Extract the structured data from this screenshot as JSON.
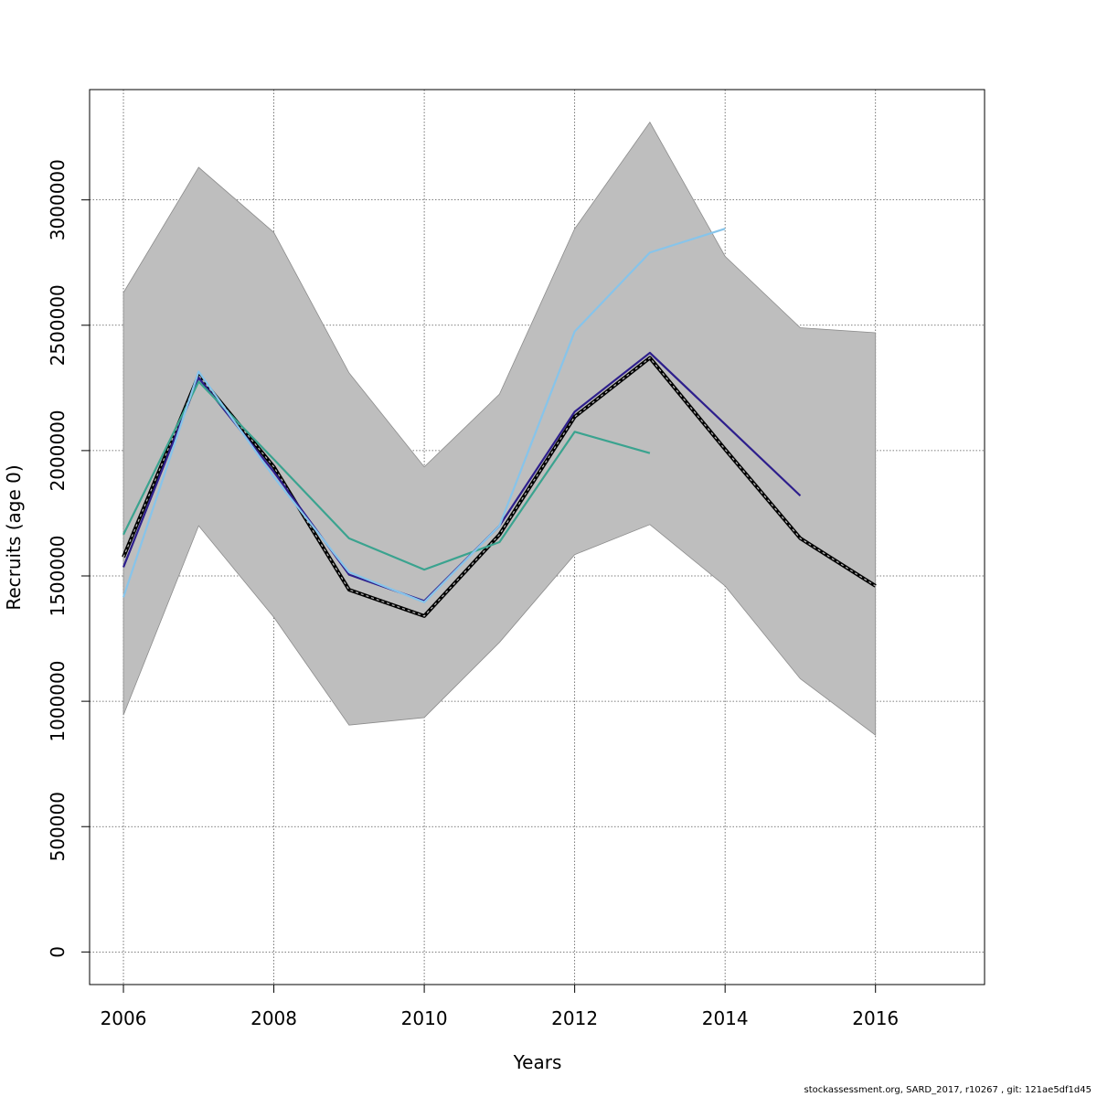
{
  "chart_data": {
    "type": "line",
    "title": "",
    "xlabel": "Years",
    "ylabel": "Recruits (age 0)",
    "xlim": [
      2005.55,
      2017.45
    ],
    "ylim": [
      -130000,
      3440000
    ],
    "x_ticks": [
      2006,
      2008,
      2010,
      2012,
      2014,
      2016
    ],
    "y_ticks": [
      0,
      500000,
      1000000,
      1500000,
      2000000,
      2500000,
      3000000
    ],
    "grid": true,
    "confidence_band": {
      "x": [
        2006,
        2007,
        2008,
        2009,
        2010,
        2011,
        2012,
        2013,
        2014,
        2015,
        2016
      ],
      "upper": [
        2630000,
        3130000,
        2870000,
        2310000,
        1935000,
        2225000,
        2885000,
        3310000,
        2775000,
        2490000,
        2470000
      ],
      "lower": [
        945000,
        1700000,
        1335000,
        905000,
        935000,
        1235000,
        1585000,
        1705000,
        1460000,
        1090000,
        865000
      ],
      "color": "#bebebe"
    },
    "series": [
      {
        "x": [
          2006,
          2007,
          2008,
          2009,
          2010,
          2011,
          2012,
          2013,
          2014,
          2015,
          2016
        ],
        "values": [
          1575000,
          2300000,
          1935000,
          1445000,
          1340000,
          1665000,
          2135000,
          2370000,
          2005000,
          1650000,
          1460000
        ],
        "color": "#000000",
        "style": "dashed-double"
      },
      {
        "x": [
          2006,
          2007,
          2008,
          2009,
          2010,
          2011,
          2012,
          2013,
          2014,
          2015
        ],
        "values": [
          1535000,
          2290000,
          1915000,
          1505000,
          1400000,
          1700000,
          2155000,
          2390000,
          2105000,
          1820000
        ],
        "color": "#2d1e8c",
        "style": "solid"
      },
      {
        "x": [
          2006,
          2007,
          2008,
          2009,
          2010,
          2011,
          2012,
          2013
        ],
        "values": [
          1665000,
          2275000,
          1965000,
          1650000,
          1525000,
          1635000,
          2075000,
          1990000
        ],
        "color": "#3aa38f",
        "style": "solid"
      },
      {
        "x": [
          2006,
          2007,
          2008,
          2009,
          2010,
          2011,
          2012,
          2013,
          2014
        ],
        "values": [
          1415000,
          2315000,
          1895000,
          1515000,
          1395000,
          1700000,
          2475000,
          2790000,
          2885000
        ],
        "color": "#87c4ea",
        "style": "solid"
      }
    ]
  },
  "footer_text": "stockassessment.org, SARD_2017, r10267 , git: 121ae5df1d45"
}
